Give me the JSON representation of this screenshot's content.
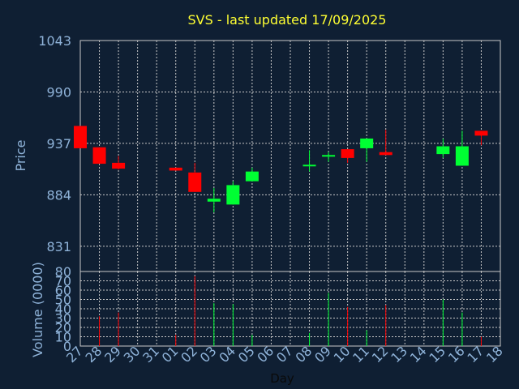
{
  "chart_data": {
    "type": "candlestick",
    "title": "SVS - last updated 17/09/2025",
    "price_panel": {
      "ylabel": "Price",
      "ylim": [
        805,
        1043
      ],
      "yticks": [
        1043,
        990,
        937,
        884,
        831
      ]
    },
    "volume_panel": {
      "ylabel": "Volume (0000)",
      "ylim": [
        0,
        80
      ],
      "yticks": [
        80,
        70,
        60,
        50,
        40,
        30,
        20,
        10,
        0
      ]
    },
    "xlabel": "Day",
    "xticks": [
      "27",
      "28",
      "29",
      "30",
      "31",
      "01",
      "02",
      "03",
      "04",
      "05",
      "06",
      "07",
      "08",
      "09",
      "10",
      "11",
      "12",
      "13",
      "14",
      "15",
      "16",
      "17",
      "18"
    ],
    "colors": {
      "up": "#00ff33",
      "down": "#ff0000",
      "title": "#ffff33",
      "axis_text": "#8fb3d9",
      "background": "#0f1f33"
    },
    "candles": [
      {
        "day": "27",
        "open": 955,
        "high": 955,
        "low": 932,
        "close": 932,
        "volume": 0
      },
      {
        "day": "28",
        "open": 933,
        "high": 933,
        "low": 916,
        "close": 916,
        "volume": 32
      },
      {
        "day": "29",
        "open": 917,
        "high": 924,
        "low": 910,
        "close": 911,
        "volume": 36
      },
      {
        "day": "01",
        "open": 912,
        "high": 912,
        "low": 909,
        "close": 909,
        "volume": 12
      },
      {
        "day": "02",
        "open": 907,
        "high": 917,
        "low": 887,
        "close": 887,
        "volume": 75
      },
      {
        "day": "03",
        "open": 877,
        "high": 891,
        "low": 866,
        "close": 880,
        "volume": 46
      },
      {
        "day": "04",
        "open": 874,
        "high": 898,
        "low": 874,
        "close": 894,
        "volume": 45
      },
      {
        "day": "05",
        "open": 898,
        "high": 912,
        "low": 898,
        "close": 908,
        "volume": 12
      },
      {
        "day": "08",
        "open": 914,
        "high": 930,
        "low": 908,
        "close": 915,
        "volume": 14
      },
      {
        "day": "09",
        "open": 924,
        "high": 928,
        "low": 918,
        "close": 925,
        "volume": 57
      },
      {
        "day": "10",
        "open": 931,
        "high": 931,
        "low": 917,
        "close": 922,
        "volume": 42
      },
      {
        "day": "11",
        "open": 932,
        "high": 942,
        "low": 918,
        "close": 942,
        "volume": 17
      },
      {
        "day": "12",
        "open": 928,
        "high": 951,
        "low": 925,
        "close": 925,
        "volume": 44
      },
      {
        "day": "15",
        "open": 926,
        "high": 942,
        "low": 922,
        "close": 934,
        "volume": 50
      },
      {
        "day": "16",
        "open": 914,
        "high": 950,
        "low": 914,
        "close": 934,
        "volume": 36
      },
      {
        "day": "17",
        "open": 950,
        "high": 950,
        "low": 935,
        "close": 945,
        "volume": 10
      }
    ]
  }
}
